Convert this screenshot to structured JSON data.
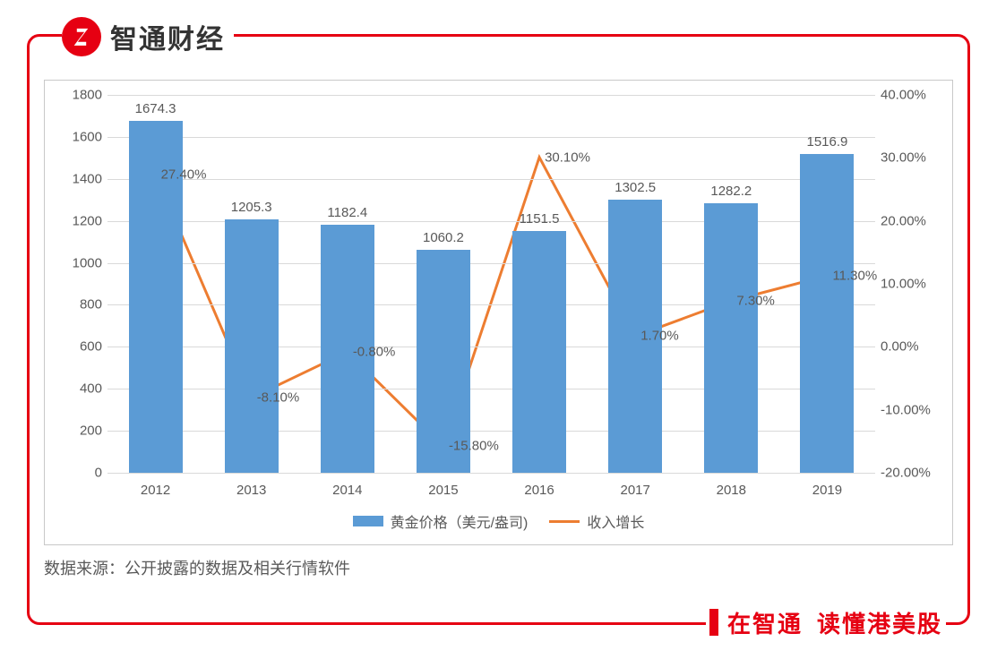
{
  "brand": {
    "name": "智通财经"
  },
  "footer": {
    "text_a": "在智通",
    "text_b": "读懂港美股"
  },
  "source": {
    "label": "数据来源：公开披露的数据及相关行情软件"
  },
  "legend": {
    "bar_label": "黄金价格（美元/盎司)",
    "line_label": "收入增长"
  },
  "chart": {
    "type": "bar+line",
    "categories": [
      "2012",
      "2013",
      "2014",
      "2015",
      "2016",
      "2017",
      "2018",
      "2019"
    ],
    "bar_values": [
      1674.3,
      1205.3,
      1182.4,
      1060.2,
      1151.5,
      1302.5,
      1282.2,
      1516.9
    ],
    "line_values_pct": [
      27.4,
      -8.1,
      -0.8,
      -15.8,
      30.1,
      1.7,
      7.3,
      11.3
    ],
    "bar_color": "#5b9bd5",
    "line_color": "#ed7d31",
    "line_width": 3,
    "grid_color": "#d9d9d9",
    "border_color": "#c8c8c8",
    "y_left": {
      "min": 0,
      "max": 1800,
      "step": 200
    },
    "y_right": {
      "min": -20,
      "max": 40,
      "step": 10,
      "suffix": "%",
      "decimals": 2
    },
    "label_color": "#595959",
    "label_fontsize": 15,
    "bar_width_ratio": 0.56,
    "frame": {
      "accent": "#e60012",
      "radius": 14
    }
  }
}
